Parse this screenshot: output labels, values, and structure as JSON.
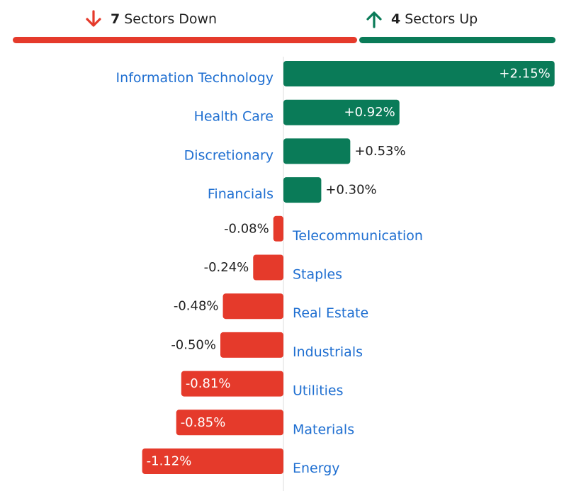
{
  "summary": {
    "down_count": "7",
    "down_text": "Sectors Down",
    "up_count": "4",
    "up_text": "Sectors Up",
    "down_color": "#e53a2b",
    "up_color": "#0a7b58",
    "down_icon": "arrow-down-icon",
    "up_icon": "arrow-up-icon"
  },
  "chart_data": {
    "type": "bar",
    "orientation": "horizontal",
    "categories": [
      "Information Technology",
      "Health Care",
      "Discretionary",
      "Financials",
      "Telecommunication",
      "Staples",
      "Real Estate",
      "Industrials",
      "Utilities",
      "Materials",
      "Energy"
    ],
    "values": [
      2.15,
      0.92,
      0.53,
      0.3,
      -0.08,
      -0.24,
      -0.48,
      -0.5,
      -0.81,
      -0.85,
      -1.12
    ],
    "labels": [
      "+2.15%",
      "+0.92%",
      "+0.53%",
      "+0.30%",
      "-0.08%",
      "-0.24%",
      "-0.48%",
      "-0.50%",
      "-0.81%",
      "-0.85%",
      "-1.12%"
    ],
    "unit": "%",
    "positive_color": "#0a7b58",
    "negative_color": "#e53a2b",
    "label_color": "#1f6fd1",
    "title": "",
    "xlabel": "",
    "ylabel": ""
  }
}
